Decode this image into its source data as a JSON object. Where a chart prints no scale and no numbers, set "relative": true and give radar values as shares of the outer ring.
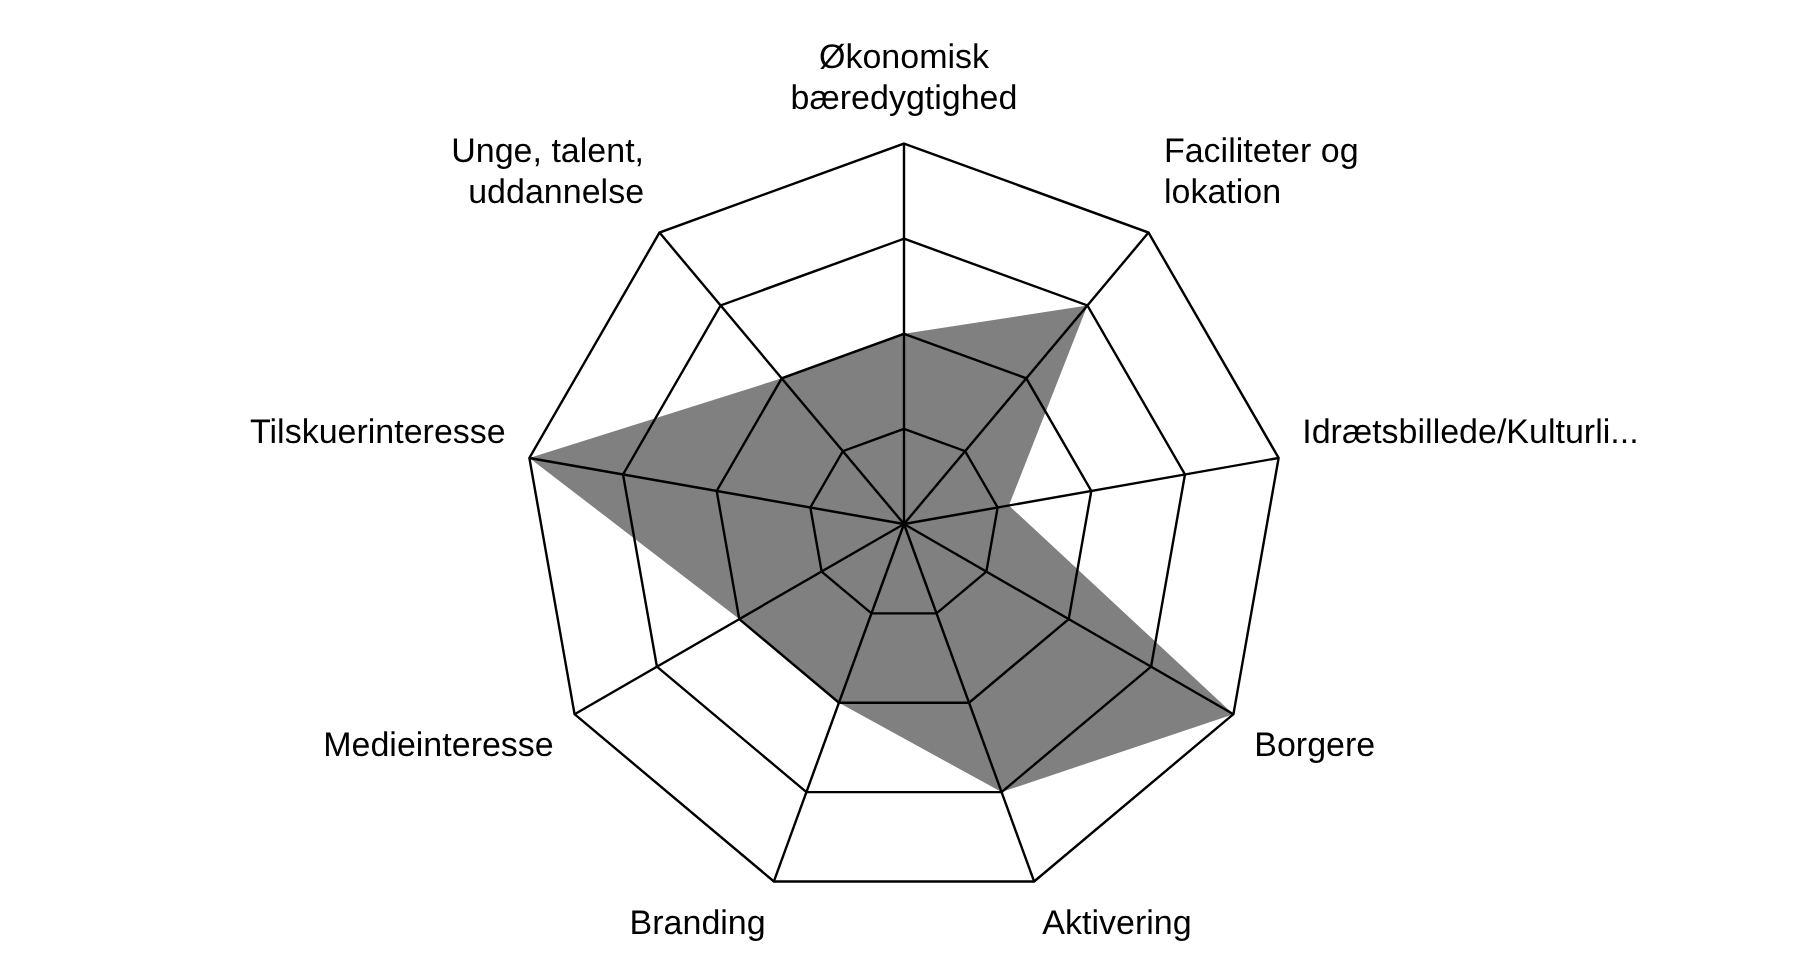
{
  "chart_data": {
    "type": "radar",
    "relative": true,
    "categories": [
      "Økonomisk bæredygtighed",
      "Faciliteter og lokation",
      "Idrætsbillede/Kulturli...",
      "Borgere",
      "Aktivering",
      "Branding",
      "Medieinteresse",
      "Tilskuerinteresse",
      "Unge, talent, uddannelse"
    ],
    "series": [
      {
        "color": "#808080",
        "values": [
          0.5,
          0.75,
          0.28,
          1,
          0.75,
          0.5,
          0.5,
          1,
          0.5
        ]
      }
    ],
    "grid": true,
    "legend": false,
    "marker": "none"
  }
}
